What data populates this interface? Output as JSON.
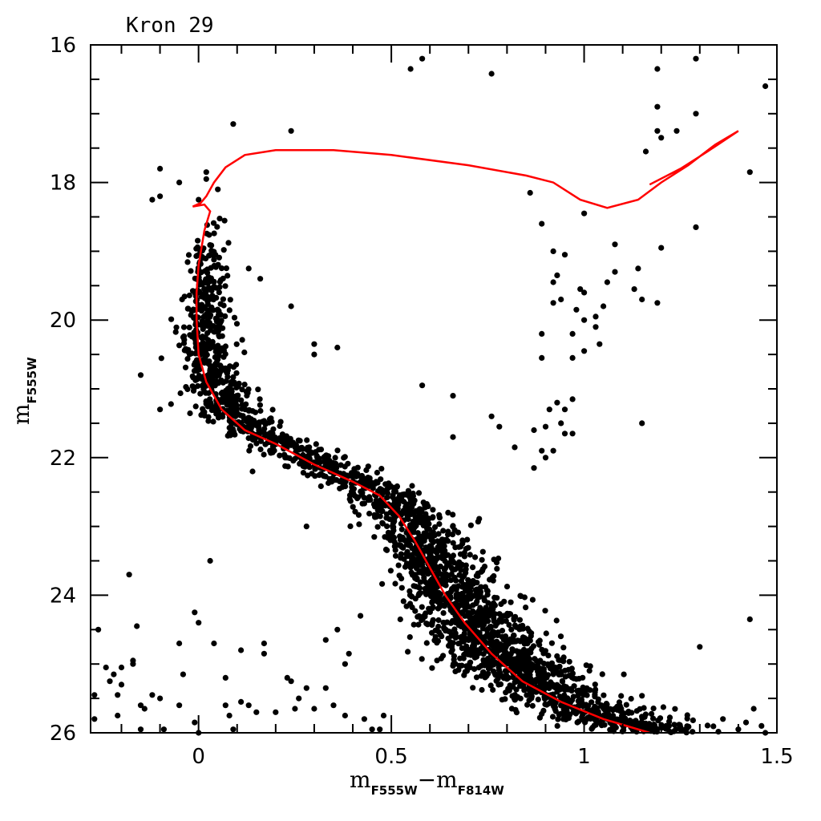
{
  "chart_data": {
    "type": "scatter",
    "title": "Kron 29",
    "xlabel": {
      "main1": "m",
      "sub1": "F555W",
      "op": "−",
      "main2": "m",
      "sub2": "F814W"
    },
    "ylabel": {
      "main": "m",
      "sub": "F555W"
    },
    "xlim": [
      -0.28,
      1.5
    ],
    "ylim": [
      26,
      16
    ],
    "y_inverted": true,
    "x_ticks": [
      "0",
      "0.5",
      "1",
      "1.5"
    ],
    "x_tick_values": [
      0,
      0.5,
      1,
      1.5
    ],
    "y_ticks": [
      "16",
      "18",
      "20",
      "22",
      "24",
      "26"
    ],
    "y_tick_values": [
      16,
      18,
      20,
      22,
      24,
      26
    ],
    "grid": false,
    "point_color": "#000000",
    "line_color": "#ff0000",
    "isochrone": [
      [
        1.17,
        18.03
      ],
      [
        1.25,
        17.8
      ],
      [
        1.32,
        17.55
      ],
      [
        1.4,
        17.25
      ],
      [
        1.34,
        17.45
      ],
      [
        1.27,
        17.75
      ],
      [
        1.2,
        18.0
      ],
      [
        1.14,
        18.25
      ],
      [
        1.06,
        18.37
      ],
      [
        0.99,
        18.25
      ],
      [
        0.92,
        18.0
      ],
      [
        0.85,
        17.9
      ],
      [
        0.7,
        17.75
      ],
      [
        0.5,
        17.6
      ],
      [
        0.35,
        17.53
      ],
      [
        0.2,
        17.53
      ],
      [
        0.12,
        17.6
      ],
      [
        0.07,
        17.78
      ],
      [
        0.04,
        18.0
      ],
      [
        0.02,
        18.2
      ],
      [
        0.005,
        18.3
      ],
      [
        -0.015,
        18.35
      ],
      [
        0.015,
        18.32
      ],
      [
        0.03,
        18.42
      ],
      [
        0.015,
        18.7
      ],
      [
        0.0,
        19.2
      ],
      [
        -0.005,
        19.6
      ],
      [
        -0.005,
        20.0
      ],
      [
        0.0,
        20.5
      ],
      [
        0.02,
        20.9
      ],
      [
        0.06,
        21.3
      ],
      [
        0.12,
        21.6
      ],
      [
        0.2,
        21.8
      ],
      [
        0.3,
        22.1
      ],
      [
        0.4,
        22.35
      ],
      [
        0.47,
        22.55
      ],
      [
        0.52,
        22.85
      ],
      [
        0.56,
        23.2
      ],
      [
        0.6,
        23.6
      ],
      [
        0.64,
        24.0
      ],
      [
        0.69,
        24.4
      ],
      [
        0.76,
        24.85
      ],
      [
        0.84,
        25.25
      ],
      [
        0.94,
        25.55
      ],
      [
        1.05,
        25.8
      ],
      [
        1.17,
        26.0
      ]
    ],
    "points": [
      [
        0.55,
        16.35
      ],
      [
        0.58,
        16.2
      ],
      [
        0.76,
        16.42
      ],
      [
        1.19,
        16.35
      ],
      [
        1.29,
        16.2
      ],
      [
        1.47,
        16.6
      ],
      [
        1.19,
        16.9
      ],
      [
        1.29,
        17.0
      ],
      [
        1.19,
        17.25
      ],
      [
        1.24,
        17.25
      ],
      [
        1.2,
        17.35
      ],
      [
        1.16,
        17.55
      ],
      [
        1.43,
        17.85
      ],
      [
        0.09,
        17.15
      ],
      [
        0.24,
        17.25
      ],
      [
        -0.1,
        17.8
      ],
      [
        0.02,
        17.85
      ],
      [
        0.02,
        17.95
      ],
      [
        -0.05,
        18.0
      ],
      [
        0.05,
        18.1
      ],
      [
        -0.12,
        18.25
      ],
      [
        -0.1,
        18.2
      ],
      [
        0.0,
        18.25
      ],
      [
        0.86,
        18.15
      ],
      [
        1.0,
        18.45
      ],
      [
        0.89,
        18.6
      ],
      [
        1.29,
        18.65
      ],
      [
        1.08,
        18.9
      ],
      [
        1.2,
        18.95
      ],
      [
        0.92,
        19.0
      ],
      [
        0.95,
        19.05
      ],
      [
        0.13,
        19.25
      ],
      [
        0.16,
        19.4
      ],
      [
        0.93,
        19.35
      ],
      [
        0.92,
        19.45
      ],
      [
        1.08,
        19.3
      ],
      [
        1.14,
        19.25
      ],
      [
        1.06,
        19.45
      ],
      [
        1.13,
        19.55
      ],
      [
        1.15,
        19.7
      ],
      [
        0.99,
        19.55
      ],
      [
        1.0,
        19.6
      ],
      [
        0.94,
        19.7
      ],
      [
        0.92,
        19.75
      ],
      [
        1.19,
        19.75
      ],
      [
        0.98,
        19.85
      ],
      [
        1.0,
        20.0
      ],
      [
        1.03,
        19.95
      ],
      [
        1.05,
        19.8
      ],
      [
        0.24,
        19.8
      ],
      [
        1.03,
        20.1
      ],
      [
        0.89,
        20.2
      ],
      [
        0.97,
        20.2
      ],
      [
        1.04,
        20.35
      ],
      [
        1.0,
        20.45
      ],
      [
        0.89,
        20.55
      ],
      [
        0.97,
        20.55
      ],
      [
        0.3,
        20.35
      ],
      [
        0.36,
        20.4
      ],
      [
        0.3,
        20.5
      ],
      [
        -0.15,
        20.8
      ],
      [
        -0.1,
        21.3
      ],
      [
        0.58,
        20.95
      ],
      [
        0.66,
        21.1
      ],
      [
        0.93,
        21.2
      ],
      [
        0.91,
        21.3
      ],
      [
        0.95,
        21.3
      ],
      [
        0.97,
        21.15
      ],
      [
        0.94,
        21.5
      ],
      [
        0.9,
        21.55
      ],
      [
        0.76,
        21.4
      ],
      [
        0.78,
        21.55
      ],
      [
        0.66,
        21.7
      ],
      [
        1.15,
        21.5
      ],
      [
        0.95,
        21.65
      ],
      [
        0.97,
        21.65
      ],
      [
        0.87,
        21.6
      ],
      [
        0.89,
        21.9
      ],
      [
        0.92,
        21.9
      ],
      [
        0.9,
        22.0
      ],
      [
        0.82,
        21.85
      ],
      [
        0.87,
        22.15
      ],
      [
        0.14,
        22.2
      ],
      [
        0.28,
        23.0
      ],
      [
        0.03,
        23.5
      ],
      [
        -0.18,
        23.7
      ],
      [
        -0.26,
        24.5
      ],
      [
        -0.16,
        24.45
      ],
      [
        -0.01,
        24.25
      ],
      [
        0.0,
        24.4
      ],
      [
        -0.05,
        24.7
      ],
      [
        0.04,
        24.7
      ],
      [
        0.17,
        24.7
      ],
      [
        0.17,
        24.85
      ],
      [
        0.11,
        24.8
      ],
      [
        0.33,
        24.65
      ],
      [
        0.36,
        24.5
      ],
      [
        0.42,
        24.3
      ],
      [
        0.39,
        24.85
      ],
      [
        0.38,
        25.0
      ],
      [
        -0.24,
        25.05
      ],
      [
        -0.22,
        25.15
      ],
      [
        -0.2,
        25.05
      ],
      [
        -0.23,
        25.25
      ],
      [
        -0.2,
        25.3
      ],
      [
        -0.21,
        25.45
      ],
      [
        -0.27,
        25.45
      ],
      [
        -0.17,
        24.95
      ],
      [
        -0.17,
        25.0
      ],
      [
        -0.27,
        25.8
      ],
      [
        -0.21,
        25.75
      ],
      [
        -0.15,
        25.6
      ],
      [
        -0.14,
        25.65
      ],
      [
        -0.12,
        25.45
      ],
      [
        -0.1,
        25.5
      ],
      [
        -0.09,
        25.95
      ],
      [
        -0.15,
        25.95
      ],
      [
        -0.05,
        25.6
      ],
      [
        -0.01,
        25.85
      ],
      [
        0.0,
        26.0
      ],
      [
        -0.04,
        25.15
      ],
      [
        0.07,
        25.6
      ],
      [
        0.08,
        25.75
      ],
      [
        0.09,
        25.95
      ],
      [
        0.07,
        25.2
      ],
      [
        0.11,
        25.55
      ],
      [
        0.13,
        25.6
      ],
      [
        0.15,
        25.7
      ],
      [
        0.2,
        25.7
      ],
      [
        0.23,
        25.2
      ],
      [
        0.24,
        25.25
      ],
      [
        0.26,
        25.5
      ],
      [
        0.28,
        25.35
      ],
      [
        0.25,
        25.65
      ],
      [
        0.3,
        25.65
      ],
      [
        0.33,
        25.35
      ],
      [
        0.35,
        25.6
      ],
      [
        0.38,
        25.75
      ],
      [
        0.43,
        25.8
      ],
      [
        0.45,
        25.95
      ],
      [
        0.47,
        25.95
      ],
      [
        0.48,
        25.75
      ],
      [
        1.43,
        24.35
      ],
      [
        1.3,
        24.75
      ],
      [
        1.36,
        25.8
      ],
      [
        1.44,
        25.65
      ],
      [
        1.46,
        25.9
      ],
      [
        1.47,
        26.0
      ],
      [
        1.4,
        25.95
      ],
      [
        1.42,
        25.85
      ]
    ]
  }
}
